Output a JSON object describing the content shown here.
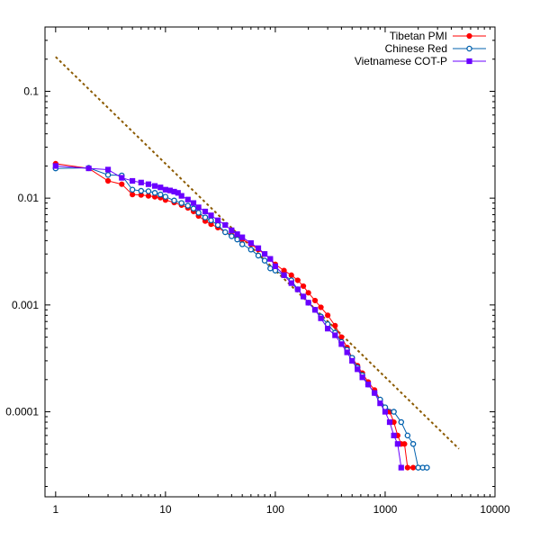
{
  "chart_data": {
    "type": "scatter",
    "title": "",
    "xlabel": "",
    "ylabel": "",
    "xscale": "log",
    "yscale": "log",
    "xlim": [
      0.8,
      10000
    ],
    "ylim": [
      1.6e-05,
      0.4
    ],
    "grid": false,
    "legend_position": "top-right",
    "x_ticks": [
      {
        "value": 1,
        "label": "1"
      },
      {
        "value": 10,
        "label": "10"
      },
      {
        "value": 100,
        "label": "100"
      },
      {
        "value": 1000,
        "label": "1000"
      },
      {
        "value": 10000,
        "label": "10000"
      }
    ],
    "y_ticks": [
      {
        "value": 0.1,
        "label": "0.1"
      },
      {
        "value": 0.01,
        "label": "0.01"
      },
      {
        "value": 0.001,
        "label": "0.001"
      },
      {
        "value": 0.0001,
        "label": "0.0001"
      }
    ],
    "series": [
      {
        "name": "Tibetan PMI",
        "color": "#ff0000",
        "marker": "filled-circle",
        "points": [
          [
            1,
            0.021
          ],
          [
            2,
            0.019
          ],
          [
            3,
            0.0145
          ],
          [
            4,
            0.0135
          ],
          [
            5,
            0.0108
          ],
          [
            6,
            0.0107
          ],
          [
            7,
            0.0105
          ],
          [
            8,
            0.0103
          ],
          [
            9,
            0.0101
          ],
          [
            10,
            0.0096
          ],
          [
            12,
            0.0091
          ],
          [
            14,
            0.0086
          ],
          [
            16,
            0.0081
          ],
          [
            18,
            0.0075
          ],
          [
            20,
            0.0068
          ],
          [
            23,
            0.0061
          ],
          [
            26,
            0.0057
          ],
          [
            30,
            0.0053
          ],
          [
            35,
            0.0048
          ],
          [
            40,
            0.0045
          ],
          [
            45,
            0.0043
          ],
          [
            50,
            0.0041
          ],
          [
            60,
            0.0037
          ],
          [
            70,
            0.0033
          ],
          [
            80,
            0.003
          ],
          [
            90,
            0.0027
          ],
          [
            100,
            0.0024
          ],
          [
            120,
            0.0021
          ],
          [
            140,
            0.0019
          ],
          [
            160,
            0.0017
          ],
          [
            180,
            0.0015
          ],
          [
            200,
            0.0013
          ],
          [
            230,
            0.0011
          ],
          [
            260,
            0.00095
          ],
          [
            300,
            0.0008
          ],
          [
            350,
            0.00064
          ],
          [
            400,
            0.0005
          ],
          [
            450,
            0.0004
          ],
          [
            500,
            0.00032
          ],
          [
            560,
            0.00027
          ],
          [
            620,
            0.00023
          ],
          [
            700,
            0.00019
          ],
          [
            800,
            0.00016
          ],
          [
            900,
            0.00013
          ],
          [
            1000,
            0.00011
          ],
          [
            1100,
            0.0001
          ],
          [
            1200,
            8e-05
          ],
          [
            1300,
            6e-05
          ],
          [
            1400,
            5e-05
          ],
          [
            1500,
            5e-05
          ],
          [
            1600,
            3e-05
          ],
          [
            1800,
            3e-05
          ]
        ]
      },
      {
        "name": "Chinese Red",
        "color": "#0060ad",
        "marker": "open-circle",
        "points": [
          [
            1,
            0.019
          ],
          [
            2,
            0.0192
          ],
          [
            3,
            0.0165
          ],
          [
            4,
            0.0163
          ],
          [
            5,
            0.012
          ],
          [
            6,
            0.0117
          ],
          [
            7,
            0.0116
          ],
          [
            8,
            0.0112
          ],
          [
            9,
            0.0108
          ],
          [
            10,
            0.0103
          ],
          [
            12,
            0.0095
          ],
          [
            14,
            0.009
          ],
          [
            16,
            0.0085
          ],
          [
            18,
            0.008
          ],
          [
            20,
            0.0073
          ],
          [
            23,
            0.0066
          ],
          [
            26,
            0.0062
          ],
          [
            30,
            0.0056
          ],
          [
            35,
            0.0048
          ],
          [
            40,
            0.0044
          ],
          [
            45,
            0.0041
          ],
          [
            50,
            0.0037
          ],
          [
            60,
            0.0033
          ],
          [
            70,
            0.0029
          ],
          [
            80,
            0.0026
          ],
          [
            90,
            0.0022
          ],
          [
            100,
            0.0021
          ],
          [
            120,
            0.0019
          ],
          [
            140,
            0.0017
          ],
          [
            160,
            0.0014
          ],
          [
            180,
            0.0012
          ],
          [
            200,
            0.00105
          ],
          [
            230,
            0.0009
          ],
          [
            260,
            0.00078
          ],
          [
            300,
            0.00066
          ],
          [
            350,
            0.00055
          ],
          [
            400,
            0.00045
          ],
          [
            450,
            0.00038
          ],
          [
            500,
            0.00032
          ],
          [
            560,
            0.00026
          ],
          [
            620,
            0.00022
          ],
          [
            700,
            0.00018
          ],
          [
            800,
            0.00015
          ],
          [
            900,
            0.00013
          ],
          [
            1000,
            0.00011
          ],
          [
            1200,
            0.0001
          ],
          [
            1400,
            8e-05
          ],
          [
            1600,
            6e-05
          ],
          [
            1800,
            5e-05
          ],
          [
            2000,
            3e-05
          ],
          [
            2200,
            3e-05
          ],
          [
            2400,
            3e-05
          ]
        ]
      },
      {
        "name": "Vietnamese COT-P",
        "color": "#6a00ff",
        "marker": "filled-square",
        "points": [
          [
            1,
            0.02
          ],
          [
            2,
            0.019
          ],
          [
            3,
            0.0185
          ],
          [
            4,
            0.0155
          ],
          [
            5,
            0.0145
          ],
          [
            6,
            0.014
          ],
          [
            7,
            0.0135
          ],
          [
            8,
            0.013
          ],
          [
            9,
            0.0126
          ],
          [
            10,
            0.012
          ],
          [
            11,
            0.0118
          ],
          [
            12,
            0.0115
          ],
          [
            13,
            0.0112
          ],
          [
            14,
            0.0105
          ],
          [
            16,
            0.0097
          ],
          [
            18,
            0.009
          ],
          [
            20,
            0.0082
          ],
          [
            23,
            0.0075
          ],
          [
            26,
            0.0069
          ],
          [
            30,
            0.0062
          ],
          [
            35,
            0.0056
          ],
          [
            40,
            0.005
          ],
          [
            45,
            0.0046
          ],
          [
            50,
            0.0043
          ],
          [
            60,
            0.0038
          ],
          [
            70,
            0.0034
          ],
          [
            80,
            0.003
          ],
          [
            90,
            0.0027
          ],
          [
            100,
            0.0023
          ],
          [
            120,
            0.0019
          ],
          [
            140,
            0.0016
          ],
          [
            160,
            0.0014
          ],
          [
            180,
            0.0012
          ],
          [
            200,
            0.00105
          ],
          [
            230,
            0.0009
          ],
          [
            260,
            0.00075
          ],
          [
            300,
            0.0006
          ],
          [
            350,
            0.00052
          ],
          [
            400,
            0.00043
          ],
          [
            450,
            0.00036
          ],
          [
            500,
            0.0003
          ],
          [
            560,
            0.00025
          ],
          [
            620,
            0.00021
          ],
          [
            700,
            0.00018
          ],
          [
            800,
            0.00015
          ],
          [
            900,
            0.00012
          ],
          [
            1000,
            0.0001
          ],
          [
            1100,
            8e-05
          ],
          [
            1200,
            6e-05
          ],
          [
            1300,
            5e-05
          ],
          [
            1400,
            3e-05
          ]
        ]
      }
    ],
    "reference_line": {
      "style": "dashed",
      "color": "#8b5a00",
      "points": [
        [
          1,
          0.21
        ],
        [
          4700,
          4.5e-05
        ]
      ]
    }
  }
}
